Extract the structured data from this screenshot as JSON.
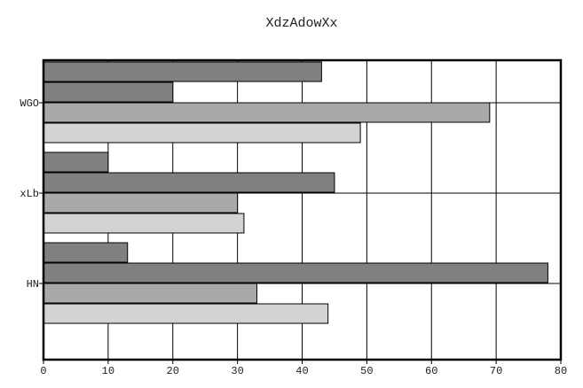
{
  "chart_data": {
    "type": "bar",
    "orientation": "horizontal",
    "title": "XdzAdowXx",
    "xlabel": "",
    "ylabel": "",
    "categories": [
      "WGO",
      "xLb",
      "HN"
    ],
    "series": [
      {
        "values": [
          43,
          10,
          13
        ],
        "color": "#808080"
      },
      {
        "values": [
          20,
          45,
          78
        ],
        "color": "#808080"
      },
      {
        "values": [
          69,
          30,
          33
        ],
        "color": "#a9a9a9"
      },
      {
        "values": [
          49,
          31,
          44
        ],
        "color": "#d3d3d3"
      }
    ],
    "xlim": [
      0,
      80
    ],
    "xticks": [
      0,
      10,
      20,
      30,
      40,
      50,
      60,
      70,
      80
    ],
    "grid": true,
    "legend": "none"
  }
}
